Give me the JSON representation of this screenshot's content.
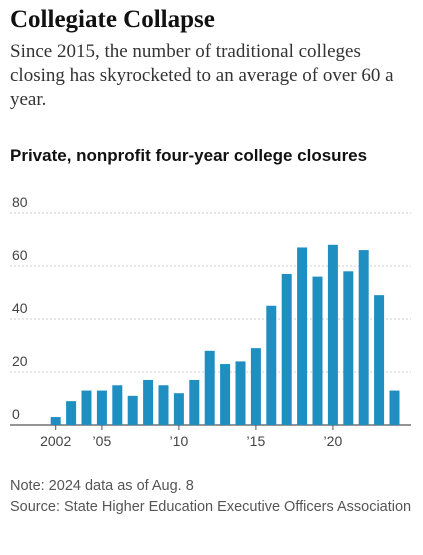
{
  "title": "Collegiate Collapse",
  "subtitle": "Since 2015, the number of traditional colleges closing has skyrocketed to an average of over 60 a year.",
  "note": "Note: 2024 data as of Aug. 8",
  "source": "Source: State Higher Education Executive Officers Association",
  "colors": {
    "bar": "#1f8fc1",
    "grid": "#cfcfcf",
    "axis": "#555555"
  },
  "chart_data": {
    "type": "bar",
    "title": "Private, nonprofit four-year college closures",
    "xlabel": "",
    "ylabel": "",
    "x": [
      2002,
      2003,
      2004,
      2005,
      2006,
      2007,
      2008,
      2009,
      2010,
      2011,
      2012,
      2013,
      2014,
      2015,
      2016,
      2017,
      2018,
      2019,
      2020,
      2021,
      2022,
      2023,
      2024
    ],
    "values": [
      3,
      9,
      13,
      13,
      15,
      11,
      17,
      15,
      12,
      17,
      28,
      23,
      24,
      29,
      45,
      57,
      67,
      56,
      68,
      58,
      66,
      49,
      13
    ],
    "ylim": [
      0,
      80
    ],
    "y_ticks": [
      0,
      20,
      40,
      60,
      80
    ],
    "x_tick_labels": [
      {
        "x": 2002,
        "label": "2002"
      },
      {
        "x": 2005,
        "label": "’05"
      },
      {
        "x": 2010,
        "label": "’10"
      },
      {
        "x": 2015,
        "label": "’15"
      },
      {
        "x": 2020,
        "label": "’20"
      }
    ],
    "grid": true
  }
}
